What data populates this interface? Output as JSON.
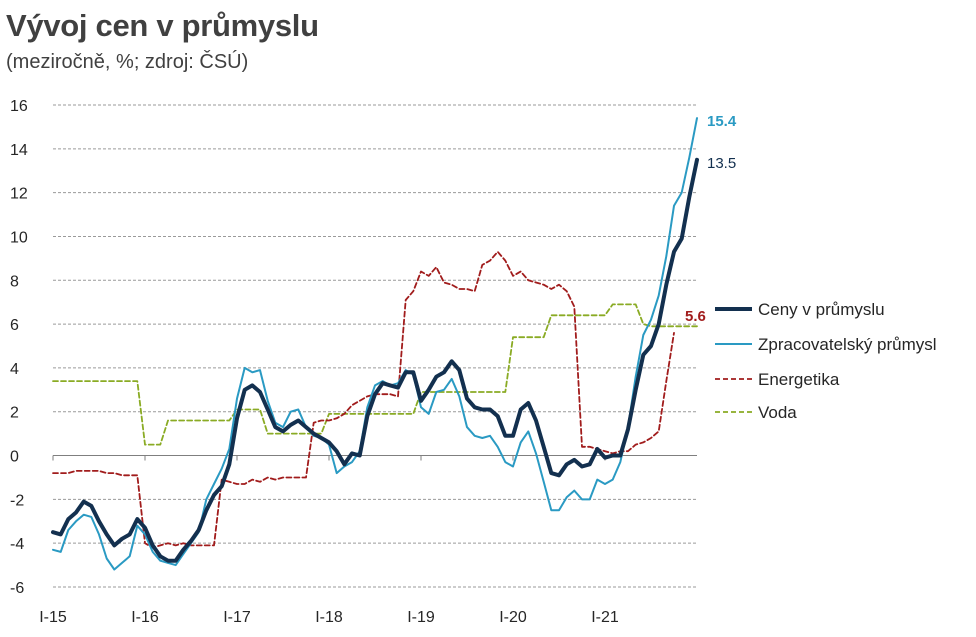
{
  "chart_data": {
    "type": "line",
    "title": "Vývoj cen v průmyslu",
    "subtitle": "(meziročně, %; zdroj: ČSÚ)",
    "xlabel": "",
    "ylabel": "",
    "ylim": [
      -6,
      16
    ],
    "yticks": [
      "-6",
      "-4",
      "-2",
      "0",
      "2",
      "4",
      "6",
      "8",
      "10",
      "12",
      "14",
      "16"
    ],
    "xticks": [
      "I-15",
      "I-16",
      "I-17",
      "I-18",
      "I-19",
      "I-20",
      "I-21"
    ],
    "grid": "horizontal dashed",
    "legend_position": "right",
    "series": [
      {
        "name": "Ceny v průmyslu",
        "color": "#13304f",
        "style": "solid-thick",
        "end_label": "13.5",
        "values": [
          -3.5,
          -3.6,
          -2.9,
          -2.6,
          -2.1,
          -2.3,
          -3.0,
          -3.6,
          -4.1,
          -3.8,
          -3.6,
          -2.9,
          -3.3,
          -4.1,
          -4.6,
          -4.8,
          -4.8,
          -4.3,
          -3.9,
          -3.4,
          -2.5,
          -1.8,
          -1.4,
          -0.4,
          1.7,
          3.0,
          3.2,
          2.9,
          2.1,
          1.3,
          1.1,
          1.4,
          1.6,
          1.3,
          1.0,
          0.8,
          0.6,
          0.2,
          -0.4,
          0.1,
          0.0,
          1.8,
          2.8,
          3.3,
          3.2,
          3.1,
          3.8,
          3.8,
          2.5,
          3.0,
          3.6,
          3.8,
          4.3,
          3.9,
          2.6,
          2.2,
          2.1,
          2.1,
          1.8,
          0.9,
          0.9,
          2.1,
          2.4,
          1.6,
          0.4,
          -0.8,
          -0.9,
          -0.4,
          -0.2,
          -0.5,
          -0.4,
          0.3,
          -0.1,
          0.0,
          0.0,
          1.2,
          3.0,
          4.6,
          5.0,
          6.0,
          7.8,
          9.3,
          9.9,
          11.8,
          13.5
        ]
      },
      {
        "name": "Zpracovatelský průmysl",
        "color": "#2a9ac3",
        "style": "solid",
        "end_label": "15.4",
        "values": [
          -4.3,
          -4.4,
          -3.4,
          -3.0,
          -2.7,
          -2.8,
          -3.6,
          -4.7,
          -5.2,
          -4.9,
          -4.6,
          -3.2,
          -3.6,
          -4.4,
          -4.8,
          -4.9,
          -5.0,
          -4.5,
          -4.0,
          -3.5,
          -2.0,
          -1.3,
          -0.6,
          0.3,
          2.6,
          4.0,
          3.8,
          3.9,
          2.5,
          1.5,
          1.3,
          2.0,
          2.1,
          1.3,
          0.9,
          0.8,
          0.5,
          -0.8,
          -0.5,
          -0.3,
          0.2,
          2.2,
          3.2,
          3.4,
          3.2,
          3.3,
          3.9,
          3.7,
          2.2,
          1.9,
          2.9,
          3.0,
          3.5,
          2.7,
          1.3,
          0.9,
          0.8,
          0.9,
          0.4,
          -0.3,
          -0.5,
          0.6,
          1.1,
          0.1,
          -1.2,
          -2.5,
          -2.5,
          -1.9,
          -1.6,
          -2.0,
          -2.0,
          -1.1,
          -1.3,
          -1.1,
          -0.3,
          1.3,
          3.6,
          5.5,
          6.2,
          7.3,
          9.1,
          11.4,
          12.0,
          13.6,
          15.4
        ]
      },
      {
        "name": "Energetika",
        "color": "#a11c1c",
        "style": "dashed",
        "end_label": "5.6",
        "values": [
          -0.8,
          -0.8,
          -0.8,
          -0.7,
          -0.7,
          -0.7,
          -0.7,
          -0.8,
          -0.8,
          -0.9,
          -0.9,
          -0.9,
          -4.0,
          -4.2,
          -4.1,
          -4.0,
          -4.1,
          -4.0,
          -4.1,
          -4.1,
          -4.1,
          -4.1,
          -1.1,
          -1.2,
          -1.3,
          -1.3,
          -1.1,
          -1.2,
          -1.0,
          -1.1,
          -1.0,
          -1.0,
          -1.0,
          -1.0,
          1.5,
          1.6,
          1.6,
          1.7,
          1.9,
          2.3,
          2.5,
          2.7,
          2.8,
          2.8,
          2.8,
          2.7,
          7.1,
          7.5,
          8.4,
          8.2,
          8.6,
          7.9,
          7.8,
          7.6,
          7.6,
          7.5,
          8.7,
          8.9,
          9.3,
          8.9,
          8.2,
          8.4,
          8.0,
          7.9,
          7.8,
          7.6,
          7.8,
          7.5,
          6.8,
          0.4,
          0.4,
          0.3,
          0.2,
          0.1,
          0.2,
          0.2,
          0.5,
          0.6,
          0.8,
          1.1,
          3.4,
          5.6
        ]
      },
      {
        "name": "Voda",
        "color": "#8aab24",
        "style": "dashed",
        "values": [
          3.4,
          3.4,
          3.4,
          3.4,
          3.4,
          3.4,
          3.4,
          3.4,
          3.4,
          3.4,
          3.4,
          3.4,
          0.5,
          0.5,
          0.5,
          1.6,
          1.6,
          1.6,
          1.6,
          1.6,
          1.6,
          1.6,
          1.6,
          1.6,
          2.1,
          2.1,
          2.1,
          2.1,
          1.0,
          1.0,
          1.0,
          1.0,
          1.0,
          1.0,
          1.0,
          1.0,
          1.9,
          1.9,
          1.9,
          1.9,
          1.9,
          1.9,
          1.9,
          1.9,
          1.9,
          1.9,
          1.9,
          1.9,
          2.9,
          2.9,
          2.9,
          2.9,
          2.9,
          2.9,
          2.9,
          2.9,
          2.9,
          2.9,
          2.9,
          2.9,
          5.4,
          5.4,
          5.4,
          5.4,
          5.4,
          6.4,
          6.4,
          6.4,
          6.4,
          6.4,
          6.4,
          6.4,
          6.4,
          6.9,
          6.9,
          6.9,
          6.9,
          6.0,
          5.9,
          5.9,
          5.9,
          5.9,
          5.9,
          5.9,
          5.9
        ]
      }
    ]
  }
}
